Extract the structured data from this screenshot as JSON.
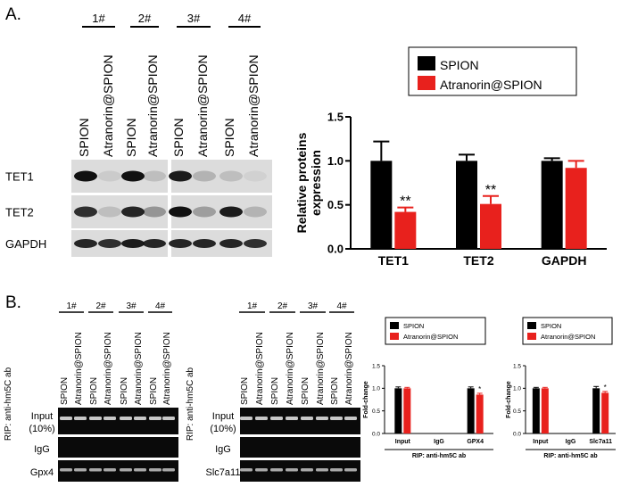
{
  "panel_labels": {
    "a": "A.",
    "b": "B."
  },
  "colors": {
    "spion": "#000000",
    "atranorin": "#e8211d",
    "gel_bg": "#dcdcdc",
    "dna_bg": "#0a0a0a"
  },
  "panel_a": {
    "group_labels": [
      "1#",
      "2#",
      "3#",
      "4#"
    ],
    "lane_labels": [
      "SPION",
      "Atranorin@SPION",
      "SPION",
      "Atranorin@SPION",
      "SPION",
      "Atranorin@SPION",
      "SPION",
      "Atranorin@SPION"
    ],
    "row_labels": [
      "TET1",
      "TET2",
      "GAPDH"
    ]
  },
  "panel_b": {
    "blot1": {
      "group_labels": [
        "1#",
        "2#",
        "3#",
        "4#"
      ],
      "lane_labels": [
        "SPION",
        "Atranorin@SPION",
        "SPION",
        "Atranorin@SPION",
        "SPION",
        "Atranorin@SPION",
        "SPION",
        "Atranorin@SPION"
      ],
      "side_label": "RIP: anti-hm5C ab",
      "row_labels": [
        "Input",
        "(10%)",
        "IgG",
        "Gpx4"
      ]
    },
    "blot2": {
      "group_labels": [
        "1#",
        "2#",
        "3#",
        "4#"
      ],
      "lane_labels": [
        "SPION",
        "Atranorin@SPION",
        "SPION",
        "Atranorin@SPION",
        "SPION",
        "Atranorin@SPION",
        "SPION",
        "Atranorin@SPION"
      ],
      "side_label": "RIP: anti-hm5C ab",
      "row_labels": [
        "Input",
        "(10%)",
        "IgG",
        "Slc7a11"
      ]
    }
  },
  "chart_data": [
    {
      "type": "bar",
      "categories": [
        "TET1",
        "TET2",
        "GAPDH"
      ],
      "series": [
        {
          "name": "SPION",
          "values": [
            1.0,
            1.0,
            1.0
          ],
          "errors": [
            0.22,
            0.07,
            0.03
          ]
        },
        {
          "name": "Atranorin@SPION",
          "values": [
            0.42,
            0.51,
            0.92
          ],
          "errors": [
            0.05,
            0.09,
            0.08
          ]
        }
      ],
      "annotations": [
        "**",
        "**",
        ""
      ],
      "ylabel": "Relative proteins expression",
      "ylim": [
        0,
        1.5
      ],
      "yticks": [
        "0.0",
        "0.5",
        "1.0",
        "1.5"
      ],
      "legend": "top"
    },
    {
      "type": "bar",
      "categories": [
        "Input",
        "IgG",
        "GPX4"
      ],
      "series": [
        {
          "name": "SPION",
          "values": [
            1.0,
            0.0,
            1.0
          ],
          "errors": [
            0.03,
            0,
            0.03
          ]
        },
        {
          "name": "Atranorin@SPION",
          "values": [
            1.0,
            0.0,
            0.86
          ],
          "errors": [
            0.02,
            0,
            0.03
          ]
        }
      ],
      "annotations": [
        "",
        "",
        "*"
      ],
      "ylabel": "Fold-change",
      "xlabel": "RIP: anti-hm5C ab",
      "ylim": [
        0,
        1.5
      ],
      "yticks": [
        "0.0",
        "0.5",
        "1.0",
        "1.5"
      ],
      "legend": "top"
    },
    {
      "type": "bar",
      "categories": [
        "Input",
        "IgG",
        "Slc7a11"
      ],
      "series": [
        {
          "name": "SPION",
          "values": [
            1.0,
            0.0,
            1.0
          ],
          "errors": [
            0.02,
            0,
            0.04
          ]
        },
        {
          "name": "Atranorin@SPION",
          "values": [
            1.0,
            0.0,
            0.9
          ],
          "errors": [
            0.02,
            0,
            0.03
          ]
        }
      ],
      "annotations": [
        "",
        "",
        "*"
      ],
      "ylabel": "Fold-change",
      "xlabel": "RIP: anti-hm5C ab",
      "ylim": [
        0,
        1.5
      ],
      "yticks": [
        "0.0",
        "0.5",
        "1.0",
        "1.5"
      ],
      "legend": "top"
    }
  ]
}
